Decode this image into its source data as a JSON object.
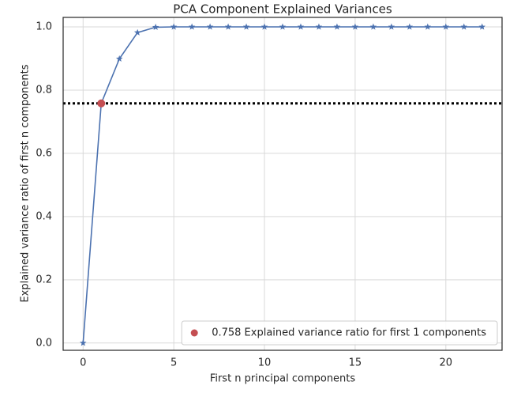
{
  "chart_data": {
    "type": "line",
    "title": "PCA Component Explained Variances",
    "xlabel": "First n principal components",
    "ylabel": "Explained variance ratio of first n components",
    "series": [
      {
        "color": "#4c72b0",
        "marker": "star",
        "x": [
          0,
          1,
          2,
          3,
          4,
          5,
          6,
          7,
          8,
          9,
          10,
          11,
          12,
          13,
          14,
          15,
          16,
          17,
          18,
          19,
          20,
          21,
          22
        ],
        "values": [
          0,
          0.758,
          0.899,
          0.982,
          0.999,
          1.0,
          1.0,
          1.0,
          1.0,
          1.0,
          1.0,
          1.0,
          1.0,
          1.0,
          1.0,
          1.0,
          1.0,
          1.0,
          1.0,
          1.0,
          1.0,
          1.0,
          1.0
        ]
      },
      {
        "name": "0.758 Explained variance ratio for first 1 components",
        "color": "#c44e52",
        "marker": "circle",
        "x": [
          1
        ],
        "values": [
          0.758
        ]
      }
    ],
    "hline": {
      "y": 0.758,
      "color": "#000000",
      "style": "dotted"
    },
    "xlim": [
      -1.1,
      23.1
    ],
    "xticks": [
      0,
      5,
      10,
      15,
      20
    ],
    "ylim": [
      -0.023,
      1.03
    ],
    "yticks": [
      {
        "value": 0,
        "label": "0.0"
      },
      0.2,
      0.4,
      0.6,
      0.8,
      {
        "value": 1,
        "label": "1.0"
      }
    ],
    "grid": true,
    "legend": "lower right"
  }
}
